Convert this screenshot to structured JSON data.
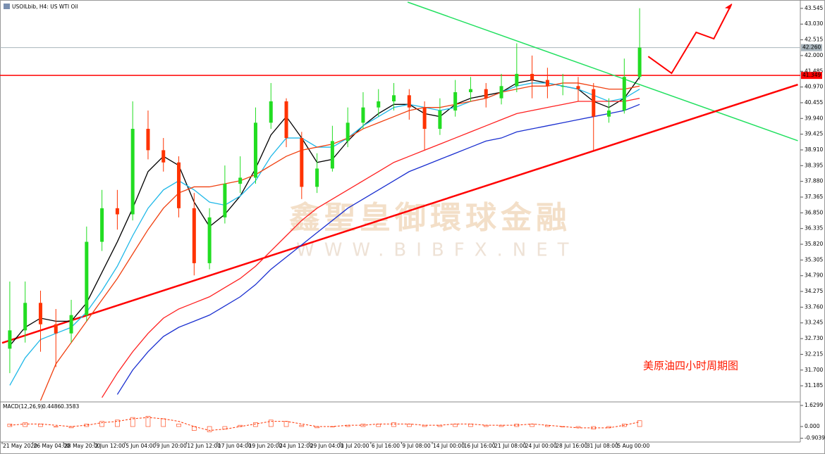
{
  "chart_data": {
    "type": "candlestick",
    "title": "USOILbib, H4: US WTI Oil",
    "categories": [
      "21 May 2020",
      null,
      "26 May 04:00",
      null,
      "28 May 20:00",
      null,
      "2 Jun 12:00",
      null,
      "5 Jun 04:00",
      null,
      "9 Jun 20:00",
      null,
      "12 Jun 12:00",
      null,
      "17 Jun 04:00",
      null,
      "19 Jun 20:00",
      null,
      "24 Jun 12:00",
      null,
      "29 Jun 04:00",
      null,
      "1 Jul 20:00",
      null,
      "6 Jul 16:00",
      null,
      "9 Jul 08:00",
      null,
      "14 Jul 00:00",
      null,
      "16 Jul 16:00",
      null,
      "21 Jul 08:00",
      null,
      "24 Jul 00:00",
      null,
      "28 Jul 16:00",
      null,
      "31 Jul 08:00",
      null,
      "5 Aug 00:00",
      null
    ],
    "open": [
      32.4,
      33.0,
      33.9,
      33.2,
      32.9,
      33.5,
      35.9,
      37.0,
      36.8,
      39.6,
      38.9,
      38.5,
      37.0,
      35.2,
      36.7,
      37.8,
      38.0,
      39.8,
      40.5,
      39.3,
      37.7,
      38.3,
      39.2,
      39.8,
      40.3,
      40.5,
      40.7,
      40.3,
      39.6,
      40.2,
      40.8,
      40.9,
      40.6,
      41.0,
      41.4,
      41.2,
      41.0,
      41.0,
      40.9,
      40.0,
      40.2,
      41.3
    ],
    "high": [
      34.6,
      34.6,
      34.3,
      33.7,
      34.0,
      36.4,
      37.6,
      37.6,
      40.5,
      40.2,
      39.3,
      38.7,
      37.5,
      37.0,
      38.4,
      38.7,
      40.3,
      41.1,
      40.6,
      39.5,
      38.8,
      39.7,
      40.3,
      40.8,
      40.9,
      41.1,
      40.9,
      40.5,
      40.6,
      41.2,
      41.3,
      41.1,
      41.4,
      42.4,
      42.0,
      41.6,
      41.4,
      41.3,
      41.1,
      40.6,
      41.9,
      43.55
    ],
    "low": [
      31.6,
      32.6,
      32.3,
      31.8,
      32.6,
      33.3,
      35.6,
      36.3,
      36.6,
      38.6,
      38.2,
      36.7,
      34.8,
      35.0,
      36.5,
      37.5,
      37.8,
      39.6,
      39.0,
      37.3,
      37.5,
      38.2,
      39.0,
      39.6,
      40.0,
      40.2,
      39.9,
      38.9,
      39.4,
      40.0,
      40.5,
      40.3,
      40.4,
      40.8,
      40.6,
      40.6,
      40.7,
      40.5,
      38.9,
      39.8,
      40.1,
      41.2
    ],
    "close": [
      33.0,
      33.9,
      33.2,
      32.9,
      33.5,
      35.9,
      37.0,
      36.8,
      39.6,
      38.9,
      38.5,
      37.0,
      35.2,
      36.7,
      37.8,
      38.0,
      39.8,
      40.5,
      39.3,
      37.7,
      38.3,
      39.2,
      39.8,
      40.3,
      40.5,
      40.7,
      40.3,
      39.6,
      40.2,
      40.8,
      40.9,
      40.6,
      41.0,
      41.4,
      41.2,
      41.0,
      41.0,
      40.9,
      40.0,
      40.2,
      41.3,
      42.26
    ],
    "up_color": "#22dd22",
    "down_color": "#ff3300",
    "ylim": [
      30.68,
      43.75
    ],
    "yticks": [
      43.545,
      {
        "value": 43.03,
        "label": "43.030"
      },
      42.515,
      {
        "value": 42.0,
        "label": "42.000"
      },
      41.485,
      {
        "value": 40.97,
        "label": "40.970"
      },
      40.455,
      {
        "value": 39.94,
        "label": "39.940"
      },
      39.425,
      {
        "value": 38.91,
        "label": "38.910"
      },
      38.395,
      {
        "value": 37.88,
        "label": "37.880"
      },
      37.365,
      {
        "value": 36.85,
        "label": "36.850"
      },
      36.335,
      {
        "value": 35.82,
        "label": "35.820"
      },
      35.305,
      {
        "value": 34.79,
        "label": "34.790"
      },
      34.275,
      {
        "value": 33.76,
        "label": "33.760"
      },
      33.245,
      {
        "value": 32.73,
        "label": "32.730"
      },
      32.215,
      {
        "value": 31.7,
        "label": "31.700"
      },
      31.185
    ],
    "grid": false,
    "series": [
      {
        "color": "#000000",
        "values": [
          32.5,
          33.1,
          33.4,
          33.3,
          33.3,
          33.9,
          34.9,
          35.9,
          37.0,
          38.2,
          38.7,
          38.4,
          37.2,
          36.4,
          36.8,
          37.4,
          38.3,
          39.4,
          40.0,
          39.3,
          38.5,
          38.6,
          39.2,
          39.7,
          40.1,
          40.4,
          40.4,
          40.1,
          40.0,
          40.4,
          40.6,
          40.7,
          40.8,
          41.1,
          41.2,
          41.1,
          41.0,
          40.9,
          40.5,
          40.3,
          40.6,
          41.3
        ]
      },
      {
        "color": "#1fb8e8",
        "values": [
          31.2,
          32.1,
          32.7,
          32.9,
          33.1,
          33.6,
          34.3,
          35.1,
          36.1,
          37.0,
          37.6,
          37.9,
          37.6,
          37.2,
          37.1,
          37.4,
          37.9,
          38.7,
          39.3,
          39.3,
          39.0,
          39.0,
          39.3,
          39.7,
          40.0,
          40.3,
          40.4,
          40.3,
          40.2,
          40.3,
          40.5,
          40.6,
          40.8,
          41.0,
          41.1,
          41.1,
          41.0,
          40.9,
          40.7,
          40.5,
          40.6,
          40.9
        ]
      },
      {
        "color": "#f04010",
        "values": [
          null,
          null,
          30.7,
          31.9,
          32.6,
          33.3,
          34.0,
          34.7,
          35.5,
          36.3,
          37.0,
          37.5,
          37.7,
          37.7,
          37.8,
          37.9,
          38.1,
          38.4,
          38.7,
          38.9,
          39.0,
          39.1,
          39.3,
          39.6,
          39.8,
          40.0,
          40.2,
          40.3,
          40.3,
          40.4,
          40.5,
          40.6,
          40.8,
          40.9,
          41.0,
          41.0,
          41.1,
          41.1,
          41.0,
          40.9,
          40.9,
          41.0
        ]
      },
      {
        "color": "#ff2020",
        "values": [
          null,
          null,
          null,
          null,
          null,
          null,
          30.8,
          31.6,
          32.3,
          32.9,
          33.4,
          33.7,
          33.9,
          34.1,
          34.4,
          34.7,
          35.1,
          35.6,
          36.1,
          36.6,
          37.0,
          37.3,
          37.6,
          37.9,
          38.2,
          38.5,
          38.7,
          38.9,
          39.1,
          39.3,
          39.5,
          39.7,
          39.9,
          40.1,
          40.2,
          40.3,
          40.4,
          40.5,
          40.5,
          40.5,
          40.5,
          40.6
        ]
      },
      {
        "color": "#1a2fd0",
        "values": [
          null,
          null,
          null,
          null,
          null,
          null,
          null,
          30.9,
          31.7,
          32.3,
          32.8,
          33.1,
          33.3,
          33.5,
          33.8,
          34.1,
          34.5,
          35.0,
          35.4,
          35.8,
          36.2,
          36.6,
          37.0,
          37.3,
          37.6,
          37.9,
          38.2,
          38.4,
          38.6,
          38.8,
          39.0,
          39.2,
          39.3,
          39.5,
          39.6,
          39.7,
          39.8,
          39.9,
          40.0,
          40.1,
          40.2,
          40.4
        ]
      }
    ],
    "price_markers": [
      {
        "price": {
          "value": 42.26,
          "label": "42.260"
        },
        "color": "#a8b4bc"
      },
      {
        "price": 41.349,
        "color": "#ff0000"
      }
    ],
    "trendlines": [
      {
        "x": [
          25.9,
          51.3
        ],
        "y": [
          43.75,
          39.21
        ],
        "color": "#22e060"
      },
      {
        "x": [
          -0.5,
          51.3
        ],
        "y": [
          32.59,
          41.05
        ],
        "color": "#ff0000"
      }
    ],
    "forecast": {
      "x": [
        41.56,
        43.08,
        44.68,
        45.83,
        46.98
      ],
      "y": [
        41.97,
        41.42,
        42.76,
        42.55,
        43.68
      ],
      "color": "#ff0000"
    },
    "annotation": "美原油四小时周期图",
    "watermark": [
      "鑫聖皇御環球金融",
      "WWW.BIBFX.NET"
    ],
    "macd": {
      "label": "MACD(12,26,9)",
      "histogram": [
        0.2,
        0.3,
        0.2,
        0.0,
        -0.1,
        0.2,
        0.4,
        0.5,
        0.7,
        0.8,
        0.6,
        0.2,
        -0.3,
        -0.4,
        -0.2,
        0.1,
        0.3,
        0.5,
        0.4,
        0.1,
        -0.1,
        0.0,
        0.1,
        0.2,
        0.2,
        0.3,
        0.2,
        0.1,
        0.1,
        0.2,
        0.2,
        0.1,
        0.1,
        0.2,
        0.2,
        0.1,
        0.0,
        -0.1,
        -0.2,
        -0.1,
        0.2,
        0.4486
      ],
      "signal": [
        0.1,
        0.2,
        0.2,
        0.1,
        0.0,
        0.1,
        0.3,
        0.4,
        0.6,
        0.7,
        0.6,
        0.4,
        0.0,
        -0.3,
        -0.2,
        0.0,
        0.2,
        0.4,
        0.4,
        0.2,
        0.0,
        0.0,
        0.1,
        0.1,
        0.2,
        0.2,
        0.2,
        0.1,
        0.1,
        0.2,
        0.2,
        0.1,
        0.1,
        0.1,
        0.2,
        0.1,
        0.0,
        -0.1,
        -0.1,
        -0.1,
        0.1,
        0.3583
      ],
      "color": "#ff3300",
      "ylim": [
        -1.196,
        1.848
      ],
      "yticks": [
        1.6299,
        {
          "value": 0,
          "label": "0.000"
        },
        -0.9039
      ]
    }
  }
}
